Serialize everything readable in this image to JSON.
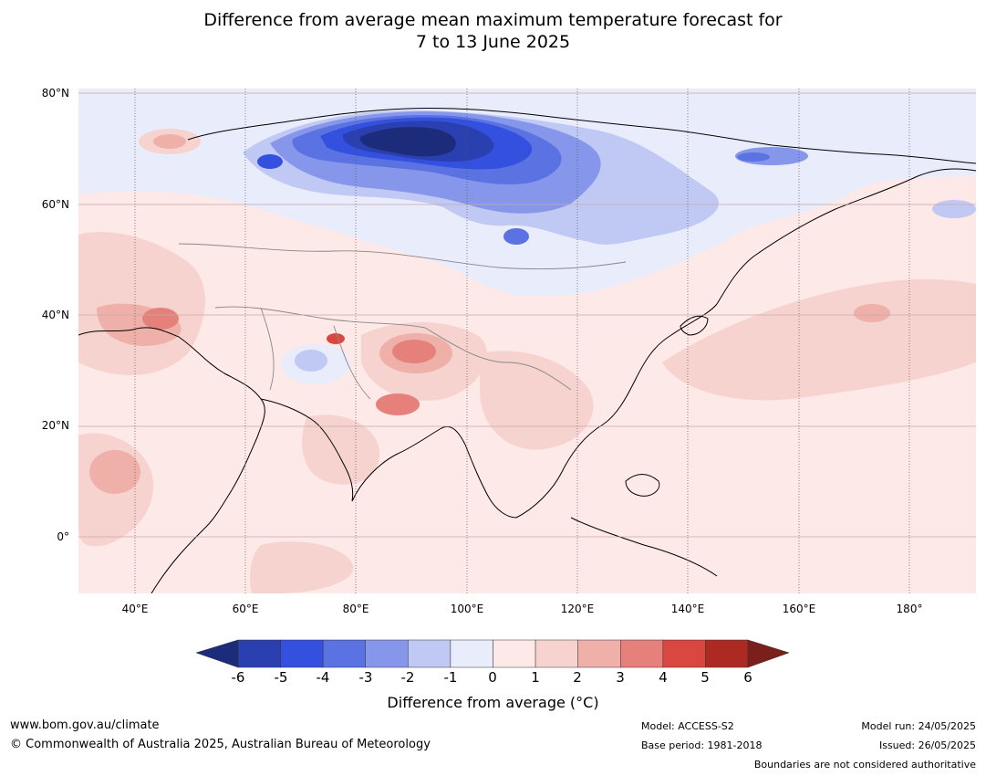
{
  "title_line1": "Difference from average mean maximum temperature forecast for",
  "title_line2": "7 to 13 June 2025",
  "lat_labels": [
    "80°N",
    "60°N",
    "40°N",
    "20°N",
    "0°"
  ],
  "lon_labels": [
    "40°E",
    "60°E",
    "80°E",
    "100°E",
    "120°E",
    "140°E",
    "160°E",
    "180°"
  ],
  "colorbar": {
    "ticks": [
      "-6",
      "-5",
      "-4",
      "-3",
      "-2",
      "-1",
      "0",
      "1",
      "2",
      "3",
      "4",
      "5",
      "6"
    ],
    "colors": [
      "#1c2c7a",
      "#2a3fb0",
      "#3350de",
      "#5b72e2",
      "#8696ea",
      "#c0c8f4",
      "#e9ecfb",
      "#fde9e7",
      "#f6d3cf",
      "#efb0a9",
      "#e6807a",
      "#d94840",
      "#ad2a22",
      "#7a1f1a"
    ],
    "label": "Difference from average (°C)"
  },
  "footer": {
    "website": "www.bom.gov.au/climate",
    "copyright": "© Commonwealth of Australia 2025, Australian Bureau of Meteorology",
    "model": "Model: ACCESS-S2",
    "base_period": "Base period: 1981-2018",
    "model_run": "Model run: 24/05/2025",
    "issued": "Issued: 26/05/2025",
    "disclaimer": "Boundaries are not considered authoritative"
  }
}
